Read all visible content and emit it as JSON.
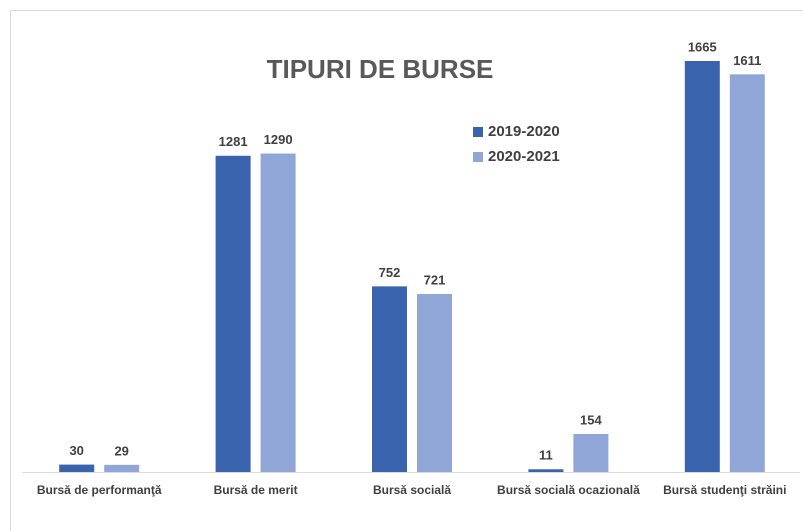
{
  "chart_data": {
    "type": "bar",
    "title": "TIPURI DE BURSE",
    "categories": [
      "Bursă de performanţă",
      "Bursă de merit",
      "Bursă socială",
      "Bursă socială ocazională",
      "Bursă studenţi străini"
    ],
    "series": [
      {
        "name": "2019-2020",
        "color": "#3a63ad",
        "values": [
          30,
          1281,
          752,
          11,
          1665
        ]
      },
      {
        "name": "2020-2021",
        "color": "#8fa6d6",
        "values": [
          29,
          1290,
          721,
          154,
          1611
        ]
      }
    ],
    "legend": "upper-center"
  }
}
